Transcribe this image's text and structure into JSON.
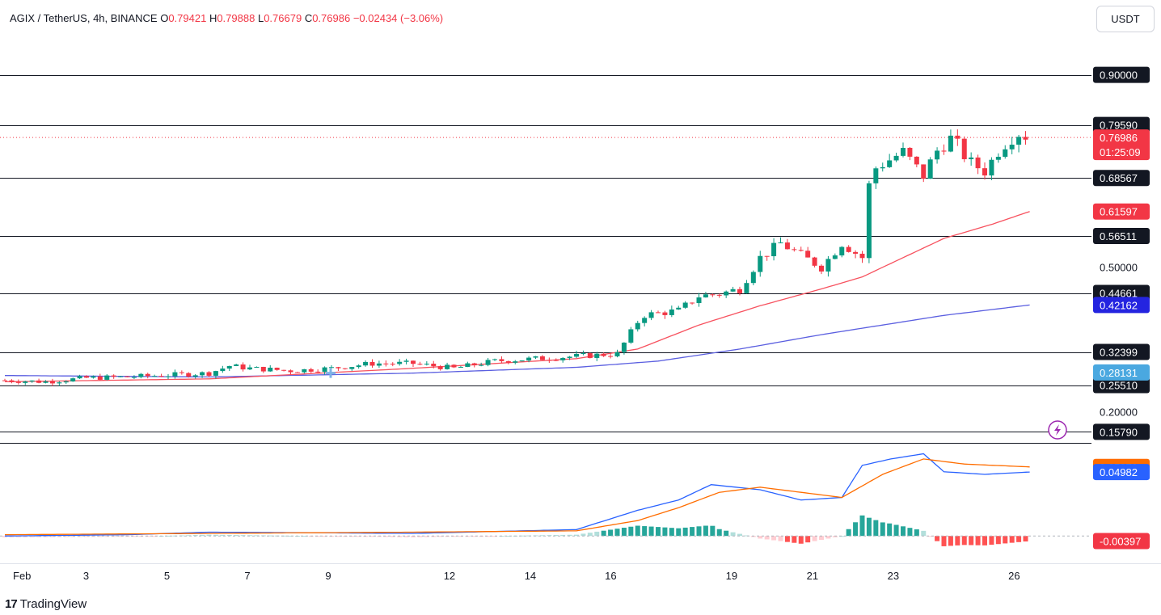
{
  "header": {
    "symbol": "AGIX / TetherUS, 4h, BINANCE",
    "open_label": "O",
    "open": "0.79421",
    "high_label": "H",
    "high": "0.79888",
    "low_label": "L",
    "low": "0.76679",
    "close_label": "C",
    "close": "0.76986",
    "change": "−0.02434 (−3.06%)"
  },
  "currency": "USDT",
  "brand": {
    "logo": "17",
    "name": "TradingView"
  },
  "colors": {
    "up": "#089981",
    "down": "#f23645",
    "ema_fast": "#f7525f",
    "ema_slow": "#5b5fe0",
    "macd": "#2962ff",
    "signal": "#ff6d00"
  },
  "chart_data": {
    "type": "candlestick",
    "price_axis": {
      "ylim": [
        0.135,
        0.98
      ],
      "ticks": [
        "0.50000",
        "0.20000"
      ],
      "horizontal_levels": [
        0.9,
        0.7959,
        0.68567,
        0.56511,
        0.44661,
        0.32399,
        0.2551,
        0.1579
      ],
      "level_labels": [
        "0.90000",
        "0.79590",
        "0.68567",
        "0.56511",
        "0.44661",
        "0.32399",
        "0.25510",
        "0.15790"
      ],
      "last_price": {
        "value": "0.76986",
        "countdown": "01:25:09",
        "color": "#f23645"
      },
      "ema_labels": [
        {
          "value": "0.61597",
          "color": "#f23645"
        },
        {
          "value": "0.42162",
          "color": "#2424e0"
        },
        {
          "value": "0.28131",
          "color": "#4aa8e0"
        }
      ]
    },
    "time_axis": {
      "labels": [
        "Feb",
        "3",
        "5",
        "7",
        "9",
        "12",
        "14",
        "16",
        "19",
        "21",
        "23",
        "26"
      ],
      "label_positions": [
        0,
        1.99,
        3.97,
        5.94,
        7.92,
        10.89,
        12.87,
        14.84,
        17.8,
        19.78,
        21.76,
        24.72
      ]
    },
    "ohlc_note": "days since Feb 1, one candle per 4h",
    "ohlc_close_path": [
      [
        0,
        0.265
      ],
      [
        1,
        0.262
      ],
      [
        2,
        0.27
      ],
      [
        3,
        0.272
      ],
      [
        4,
        0.276
      ],
      [
        5,
        0.28
      ],
      [
        5.5,
        0.295
      ],
      [
        6,
        0.29
      ],
      [
        7,
        0.285
      ],
      [
        8,
        0.29
      ],
      [
        9,
        0.3
      ],
      [
        10,
        0.3
      ],
      [
        11,
        0.29
      ],
      [
        12,
        0.305
      ],
      [
        13,
        0.31
      ],
      [
        14,
        0.315
      ],
      [
        15,
        0.32
      ],
      [
        15.3,
        0.36
      ],
      [
        15.6,
        0.4
      ],
      [
        16.5,
        0.41
      ],
      [
        17,
        0.44
      ],
      [
        17.5,
        0.445
      ],
      [
        18,
        0.455
      ],
      [
        18.5,
        0.52
      ],
      [
        19,
        0.55
      ],
      [
        19.5,
        0.525
      ],
      [
        20,
        0.5
      ],
      [
        20.5,
        0.55
      ],
      [
        21,
        0.52
      ],
      [
        21.2,
        0.7
      ],
      [
        21.6,
        0.72
      ],
      [
        22,
        0.74
      ],
      [
        22.5,
        0.69
      ],
      [
        22.8,
        0.74
      ],
      [
        23.2,
        0.77
      ],
      [
        23.6,
        0.72
      ],
      [
        24,
        0.7
      ],
      [
        24.4,
        0.75
      ],
      [
        24.8,
        0.78
      ],
      [
        25.1,
        0.77
      ]
    ],
    "ema_fast_path": [
      [
        0,
        0.262
      ],
      [
        5,
        0.268
      ],
      [
        10,
        0.29
      ],
      [
        14,
        0.31
      ],
      [
        15.5,
        0.33
      ],
      [
        17,
        0.38
      ],
      [
        18.5,
        0.42
      ],
      [
        20,
        0.455
      ],
      [
        21,
        0.48
      ],
      [
        22,
        0.52
      ],
      [
        23,
        0.56
      ],
      [
        24.2,
        0.59
      ],
      [
        25.1,
        0.61597
      ]
    ],
    "ema_slow_path": [
      [
        0,
        0.275
      ],
      [
        5,
        0.272
      ],
      [
        10,
        0.28
      ],
      [
        14,
        0.292
      ],
      [
        16,
        0.305
      ],
      [
        18,
        0.33
      ],
      [
        20,
        0.36
      ],
      [
        21.5,
        0.38
      ],
      [
        23,
        0.4
      ],
      [
        25.1,
        0.42162
      ]
    ],
    "macd_panel": {
      "ylim": [
        -0.02,
        0.07
      ],
      "labels": [
        {
          "value": "0.05379",
          "color": "#ff6d00"
        },
        {
          "value": "0.04982",
          "color": "#2962ff"
        },
        {
          "value": "-0.00397",
          "color": "#f23645"
        }
      ],
      "macd_path": [
        [
          0,
          0.0
        ],
        [
          3,
          0.001
        ],
        [
          5,
          0.003
        ],
        [
          10,
          0.002
        ],
        [
          14,
          0.005
        ],
        [
          15.5,
          0.02
        ],
        [
          16.5,
          0.028
        ],
        [
          17.3,
          0.04
        ],
        [
          18.5,
          0.036
        ],
        [
          19.5,
          0.028
        ],
        [
          20.5,
          0.03
        ],
        [
          21,
          0.055
        ],
        [
          21.7,
          0.06
        ],
        [
          22.5,
          0.064
        ],
        [
          23,
          0.05
        ],
        [
          24,
          0.048
        ],
        [
          25.1,
          0.04982
        ]
      ],
      "signal_path": [
        [
          0,
          0.001
        ],
        [
          5,
          0.002
        ],
        [
          10,
          0.003
        ],
        [
          14,
          0.004
        ],
        [
          15.5,
          0.012
        ],
        [
          16.5,
          0.022
        ],
        [
          17.5,
          0.034
        ],
        [
          18.5,
          0.038
        ],
        [
          19.5,
          0.034
        ],
        [
          20.5,
          0.03
        ],
        [
          21.5,
          0.048
        ],
        [
          22.5,
          0.06
        ],
        [
          23.5,
          0.056
        ],
        [
          25.1,
          0.05379
        ]
      ]
    }
  }
}
